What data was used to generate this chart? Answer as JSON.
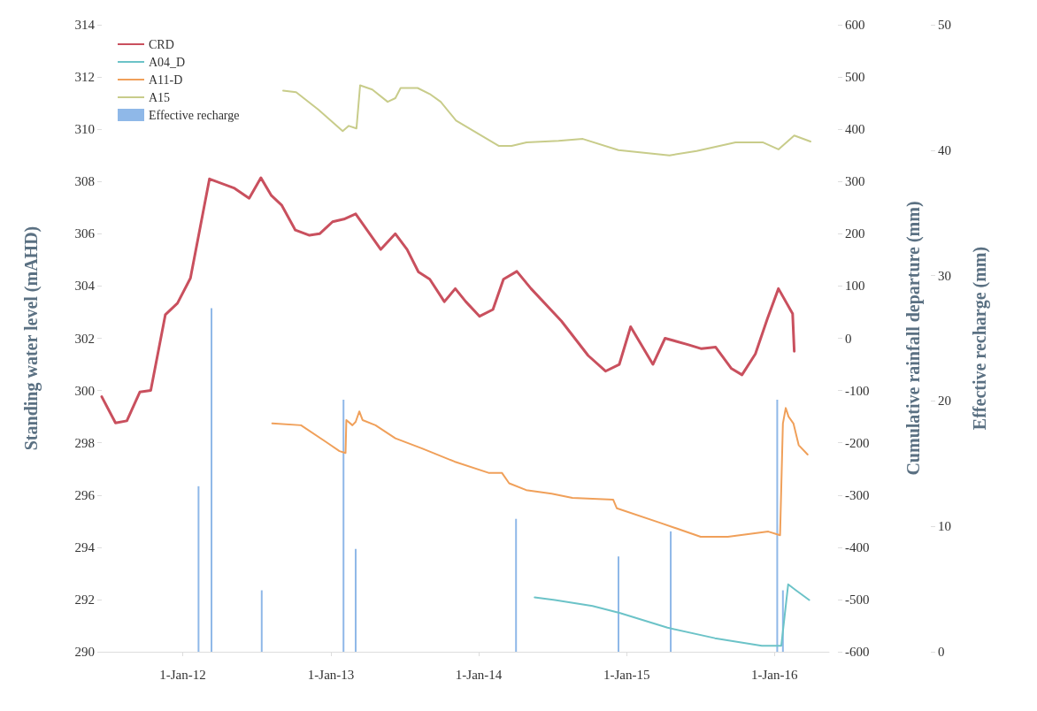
{
  "chart_data": {
    "type": "line",
    "ylabel": "Standing water level (mAHD)",
    "y2label": "Cumulative rainfall departure (mm)",
    "y3label": "Effective recharge (mm)",
    "xlim": [
      "2011-06-15",
      "2016-05-15"
    ],
    "xticks": [
      {
        "value": "2012-01-01",
        "label": "1-Jan-12"
      },
      {
        "value": "2013-01-01",
        "label": "1-Jan-13"
      },
      {
        "value": "2014-01-01",
        "label": "1-Jan-14"
      },
      {
        "value": "2015-01-01",
        "label": "1-Jan-15"
      },
      {
        "value": "2016-01-01",
        "label": "1-Jan-16"
      }
    ],
    "ylim": [
      290,
      314
    ],
    "yticks": [
      290,
      292,
      294,
      296,
      298,
      300,
      302,
      304,
      306,
      308,
      310,
      312,
      314
    ],
    "y2lim": [
      -600,
      600
    ],
    "y2ticks": [
      -600,
      -500,
      -400,
      -300,
      -200,
      -100,
      0,
      100,
      200,
      300,
      400,
      500,
      600
    ],
    "y3lim": [
      0,
      50
    ],
    "y3ticks": [
      0,
      10,
      20,
      30,
      40,
      50
    ],
    "legend": "top left",
    "grid": false,
    "line_style": "solid",
    "marker": "none",
    "series": [
      {
        "name": "CRD",
        "axis": "y2",
        "color": "#c9505e",
        "x": [
          "2011-06-15",
          "2011-07-19",
          "2011-08-16",
          "2011-09-17",
          "2011-10-14",
          "2011-11-19",
          "2011-12-19",
          "2012-01-20",
          "2012-03-07",
          "2012-05-08",
          "2012-06-13",
          "2012-07-12",
          "2012-08-07",
          "2012-09-01",
          "2012-10-05",
          "2012-11-09",
          "2012-12-04",
          "2013-01-05",
          "2013-02-02",
          "2013-03-03",
          "2013-05-04",
          "2013-06-09",
          "2013-07-08",
          "2013-08-05",
          "2013-09-02",
          "2013-10-08",
          "2013-11-04",
          "2013-11-30",
          "2014-01-03",
          "2014-02-05",
          "2014-03-03",
          "2014-04-05",
          "2014-05-10",
          "2014-07-24",
          "2014-09-28",
          "2014-11-10",
          "2014-12-14",
          "2015-01-11",
          "2015-03-07",
          "2015-04-06",
          "2015-06-01",
          "2015-07-05",
          "2015-08-09",
          "2015-09-17",
          "2015-10-13",
          "2015-11-15",
          "2015-12-15",
          "2016-01-11",
          "2016-02-15",
          "2016-02-19"
        ],
        "values": [
          -112,
          -162,
          -158,
          -103,
          -100,
          45,
          67,
          115,
          305,
          287,
          268,
          307,
          273,
          255,
          207,
          197,
          200,
          223,
          228,
          238,
          170,
          200,
          170,
          127,
          113,
          70,
          95,
          70,
          42,
          55,
          113,
          128,
          95,
          33,
          -33,
          -63,
          -50,
          22,
          -50,
          0,
          -12,
          -20,
          -17,
          -58,
          -70,
          -30,
          38,
          95,
          47,
          -25
        ]
      },
      {
        "name": "A04_D",
        "color": "#6cc3c8",
        "x": [
          "2014-05-19",
          "2014-07-08",
          "2014-10-09",
          "2014-12-16",
          "2015-04-12",
          "2015-08-07",
          "2015-12-01",
          "2016-01-18",
          "2016-02-04",
          "2016-02-21",
          "2016-03-27"
        ],
        "values": [
          292.08,
          291.98,
          291.75,
          291.48,
          290.92,
          290.52,
          290.23,
          290.23,
          292.58,
          292.38,
          291.98
        ]
      },
      {
        "name": "A11-D",
        "color": "#f0a05a",
        "x": [
          "2012-08-09",
          "2012-10-19",
          "2012-12-19",
          "2013-01-22",
          "2013-02-06",
          "2013-02-08",
          "2013-02-23",
          "2013-03-03",
          "2013-03-12",
          "2013-03-20",
          "2013-04-21",
          "2013-06-09",
          "2013-08-14",
          "2013-11-02",
          "2014-01-25",
          "2014-02-27",
          "2014-03-17",
          "2014-04-28",
          "2014-06-30",
          "2014-08-20",
          "2014-11-29",
          "2014-12-08",
          "2015-03-26",
          "2015-07-03",
          "2015-09-08",
          "2015-12-17",
          "2016-01-15",
          "2016-01-22",
          "2016-01-29",
          "2016-02-05",
          "2016-02-17",
          "2016-03-01",
          "2016-03-23"
        ],
        "values": [
          298.74,
          298.67,
          298.04,
          297.68,
          297.61,
          298.87,
          298.67,
          298.8,
          299.2,
          298.87,
          298.67,
          298.17,
          297.78,
          297.28,
          296.85,
          296.85,
          296.45,
          296.19,
          296.05,
          295.89,
          295.82,
          295.49,
          294.93,
          294.4,
          294.4,
          294.6,
          294.46,
          298.74,
          299.33,
          299,
          298.74,
          297.91,
          297.55
        ]
      },
      {
        "name": "A15",
        "color": "#c8cc8a",
        "x": [
          "2012-09-05",
          "2012-10-07",
          "2012-12-01",
          "2013-01-30",
          "2013-02-14",
          "2013-03-05",
          "2013-03-14",
          "2013-04-13",
          "2013-05-21",
          "2013-06-09",
          "2013-06-22",
          "2013-08-03",
          "2013-09-02",
          "2013-09-29",
          "2013-11-06",
          "2014-01-03",
          "2014-02-20",
          "2014-03-23",
          "2014-04-29",
          "2014-07-17",
          "2014-09-15",
          "2014-12-12",
          "2015-04-17",
          "2015-06-23",
          "2015-09-27",
          "2015-12-03",
          "2016-01-11",
          "2016-02-19",
          "2016-03-30"
        ],
        "values": [
          311.48,
          311.42,
          310.75,
          309.93,
          310.13,
          310.03,
          311.68,
          311.52,
          311.05,
          311.19,
          311.58,
          311.58,
          311.35,
          311.05,
          310.33,
          309.8,
          309.36,
          309.36,
          309.5,
          309.56,
          309.63,
          309.2,
          309,
          309.17,
          309.5,
          309.5,
          309.23,
          309.76,
          309.53
        ]
      },
      {
        "name": "Effective recharge",
        "type": "bar",
        "axis": "y3",
        "color": "#8fb8e8",
        "x": [
          "2012-02-09",
          "2012-03-12",
          "2012-07-14",
          "2013-02-01",
          "2013-03-03",
          "2014-04-03",
          "2014-12-12",
          "2015-04-20",
          "2016-01-08",
          "2016-01-22"
        ],
        "values": [
          13.2,
          27.4,
          4.9,
          20.1,
          8.2,
          10.6,
          7.6,
          9.6,
          20.1,
          4.9
        ]
      }
    ]
  }
}
